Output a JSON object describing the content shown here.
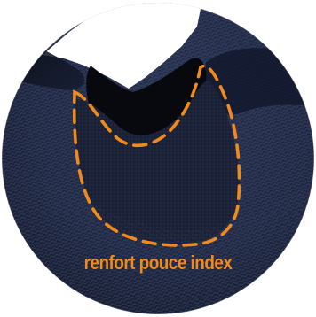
{
  "photo": {
    "subject": "glove-thumb-index-closeup",
    "caption": "renfort pouce index",
    "colors": {
      "accent": "#f08a1c",
      "fabric": "#252f4c",
      "fabric_dark": "#141a2a",
      "background": "#ffffff"
    }
  }
}
